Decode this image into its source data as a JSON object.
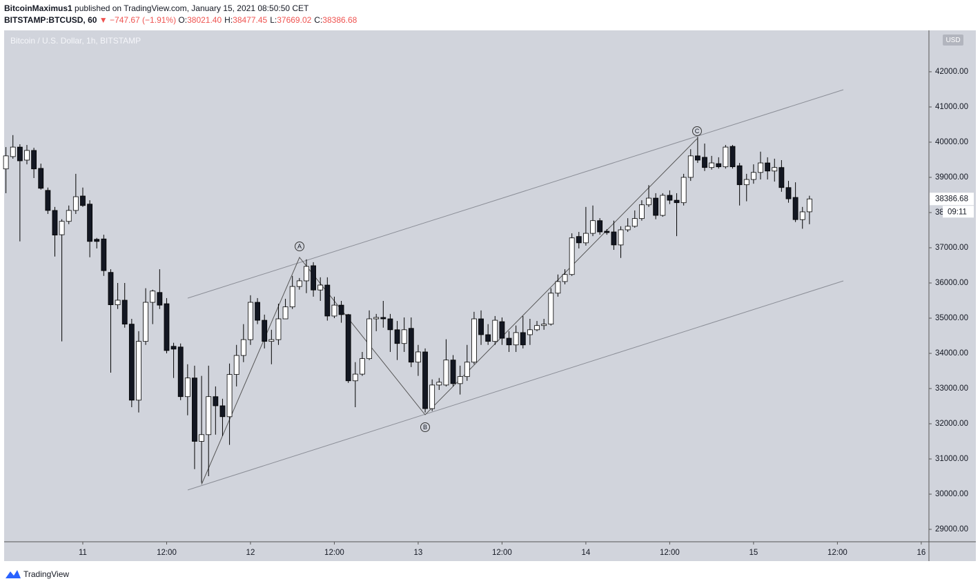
{
  "header": {
    "author": "BitcoinMaximus1",
    "published": "published on TradingView.com, January 15, 2021 08:50:50 CET",
    "symbol": "BITSTAMP:BTCUSD, 60",
    "change": "▼ −747.67 (−1.91%)",
    "ohlc": [
      {
        "label": "O:",
        "value": "38021.40"
      },
      {
        "label": "H:",
        "value": "38477.45"
      },
      {
        "label": "L:",
        "value": "37669.02"
      },
      {
        "label": "C:",
        "value": "38386.68"
      }
    ]
  },
  "footer": {
    "brand": "TradingView"
  },
  "chart_data": {
    "type": "candlestick",
    "title": "Bitcoin / U.S. Dollar, 1h, BITSTAMP",
    "currency": "USD",
    "countdown": "09:11",
    "up_color": "#ffffff",
    "down_color": "#131722",
    "annotations": [
      "A",
      "B",
      "C"
    ],
    "open": [
      39240,
      39590,
      39860,
      39490,
      39765,
      39255,
      38630,
      38060,
      37370,
      37750,
      38060,
      38470,
      38240,
      37240,
      37250,
      36300,
      35380,
      35510,
      34830,
      32670,
      34340,
      35450,
      35730,
      35410,
      34200,
      34180,
      32770,
      33300,
      31500,
      31690,
      32770,
      32510,
      32200,
      33400,
      33940,
      34390,
      35450,
      34940,
      34340,
      34390,
      34980,
      35320,
      35900,
      36060,
      36490,
      35800,
      35940,
      35060,
      35370,
      35100,
      33220,
      33410,
      33850,
      34980,
      35020,
      34980,
      34670,
      34280,
      34710,
      33750,
      34040,
      32430,
      33100,
      33100,
      33810,
      33140,
      33340,
      33750,
      34980,
      34530,
      34340,
      34900,
      34430,
      34240,
      34590,
      34530,
      34670,
      34790,
      34830,
      35710,
      36040,
      36240,
      37320,
      37140,
      37410,
      37770,
      37470,
      37450,
      37080,
      37510,
      37610,
      37830,
      38220,
      38410,
      37920,
      38490,
      38350,
      38280,
      39000,
      39610,
      39570,
      39280,
      39390,
      39300,
      39880,
      39330,
      38790,
      38940,
      39140,
      39410,
      39180,
      39280,
      38710,
      38430,
      37800,
      38021.4
    ],
    "high": [
      39860,
      40200,
      39940,
      39920,
      39840,
      39390,
      38710,
      38160,
      37810,
      38200,
      39100,
      38710,
      38350,
      37280,
      37370,
      36390,
      36000,
      36000,
      34980,
      34630,
      35850,
      35810,
      36390,
      35570,
      34300,
      34280,
      33690,
      33650,
      33360,
      33650,
      33060,
      32710,
      33710,
      34240,
      34830,
      35650,
      35570,
      35100,
      34670,
      35410,
      35550,
      36200,
      36140,
      36670,
      36590,
      36160,
      36160,
      35610,
      35490,
      35120,
      33750,
      34040,
      35220,
      35120,
      35490,
      35120,
      34920,
      35020,
      35020,
      34240,
      34140,
      33260,
      33300,
      34400,
      33950,
      33650,
      34240,
      35180,
      35220,
      34830,
      35060,
      35020,
      34630,
      34790,
      35060,
      34980,
      34920,
      34980,
      35850,
      36240,
      36390,
      37410,
      37450,
      38160,
      38200,
      37840,
      37530,
      37770,
      37610,
      37840,
      38060,
      38350,
      38780,
      38550,
      38550,
      38630,
      38550,
      39100,
      39800,
      40150,
      39960,
      39610,
      39570,
      39920,
      39920,
      39410,
      39100,
      39370,
      39730,
      39570,
      39530,
      39490,
      38900,
      38860,
      38160,
      38477.45
    ],
    "low": [
      38550,
      39530,
      37180,
      39370,
      38980,
      38650,
      37960,
      36750,
      34340,
      37670,
      37960,
      38160,
      36730,
      36980,
      36200,
      33450,
      35260,
      34730,
      32470,
      32320,
      34240,
      34830,
      35260,
      34000,
      33300,
      32670,
      32240,
      30710,
      30320,
      30510,
      31690,
      31650,
      31400,
      33060,
      33750,
      34240,
      34830,
      34140,
      33690,
      34240,
      34980,
      35260,
      35810,
      35710,
      35610,
      35490,
      34930,
      35000,
      34870,
      33160,
      32470,
      33360,
      33810,
      34630,
      34730,
      34040,
      33810,
      34040,
      33610,
      33360,
      32320,
      32360,
      32960,
      33060,
      33060,
      32830,
      33220,
      33690,
      34240,
      34240,
      34240,
      34240,
      34040,
      34040,
      34140,
      34240,
      34630,
      34670,
      34790,
      35610,
      35960,
      36200,
      36980,
      37060,
      37330,
      37370,
      37370,
      36940,
      36710,
      37450,
      37570,
      37770,
      38160,
      37810,
      37880,
      38240,
      37330,
      38200,
      38900,
      39410,
      39180,
      39220,
      39250,
      39250,
      39250,
      38200,
      38320,
      38820,
      38940,
      38940,
      38880,
      38590,
      38280,
      37730,
      37540,
      37669.02
    ],
    "close": [
      39610,
      39860,
      39470,
      39765,
      39240,
      38690,
      38060,
      37360,
      37750,
      38060,
      38450,
      38200,
      37180,
      37180,
      36350,
      35380,
      35510,
      34830,
      32670,
      34340,
      35450,
      35770,
      35370,
      34080,
      34120,
      32770,
      33300,
      31500,
      31690,
      32770,
      32510,
      32200,
      33400,
      33940,
      34390,
      35450,
      34940,
      34340,
      34390,
      34980,
      35320,
      35900,
      36060,
      36470,
      35800,
      35940,
      35060,
      35370,
      35100,
      33220,
      33410,
      33850,
      34980,
      35020,
      34980,
      34670,
      34280,
      34670,
      33750,
      34040,
      32430,
      33100,
      33180,
      33810,
      33140,
      33340,
      33750,
      34980,
      34530,
      34340,
      34940,
      34430,
      34240,
      34590,
      34240,
      34670,
      34790,
      34830,
      35710,
      36040,
      36240,
      37280,
      37140,
      37410,
      37770,
      37450,
      37430,
      37080,
      37510,
      37610,
      37830,
      38220,
      38410,
      37920,
      38490,
      38350,
      38280,
      39000,
      39610,
      39490,
      39280,
      39410,
      39300,
      39860,
      39300,
      38790,
      38940,
      39140,
      39410,
      39180,
      39280,
      38710,
      38390,
      37800,
      38020,
      38386.68
    ],
    "xlim": [
      -0.06,
      132.1
    ],
    "ylim": [
      28647,
      43176
    ],
    "xticks": [
      {
        "value": 11,
        "label": "11"
      },
      {
        "value": 23,
        "label": "12:00"
      },
      {
        "value": 35,
        "label": "12"
      },
      {
        "value": 47,
        "label": "12:00"
      },
      {
        "value": 59,
        "label": "13"
      },
      {
        "value": 71,
        "label": "12:00"
      },
      {
        "value": 83,
        "label": "14"
      },
      {
        "value": 95,
        "label": "12:00"
      },
      {
        "value": 107,
        "label": "15"
      },
      {
        "value": 119,
        "label": "12:00"
      },
      {
        "value": 131,
        "label": "16"
      }
    ],
    "yticks": [
      {
        "value": 29000,
        "label": "29000.00"
      },
      {
        "value": 30000,
        "label": "30000.00"
      },
      {
        "value": 31000,
        "label": "31000.00"
      },
      {
        "value": 32000,
        "label": "32000.00"
      },
      {
        "value": 33000,
        "label": "33000.00"
      },
      {
        "value": 34000,
        "label": "34000.00"
      },
      {
        "value": 35000,
        "label": "35000.00"
      },
      {
        "value": 36000,
        "label": "36000.00"
      },
      {
        "value": 37000,
        "label": "37000.00"
      },
      {
        "value": 38000,
        "label": "38000.00"
      },
      {
        "value": 39000,
        "label": "39000.00"
      },
      {
        "value": 40000,
        "label": "40000.00"
      },
      {
        "value": 41000,
        "label": "41000.00"
      },
      {
        "value": 42000,
        "label": "42000.00"
      }
    ]
  }
}
